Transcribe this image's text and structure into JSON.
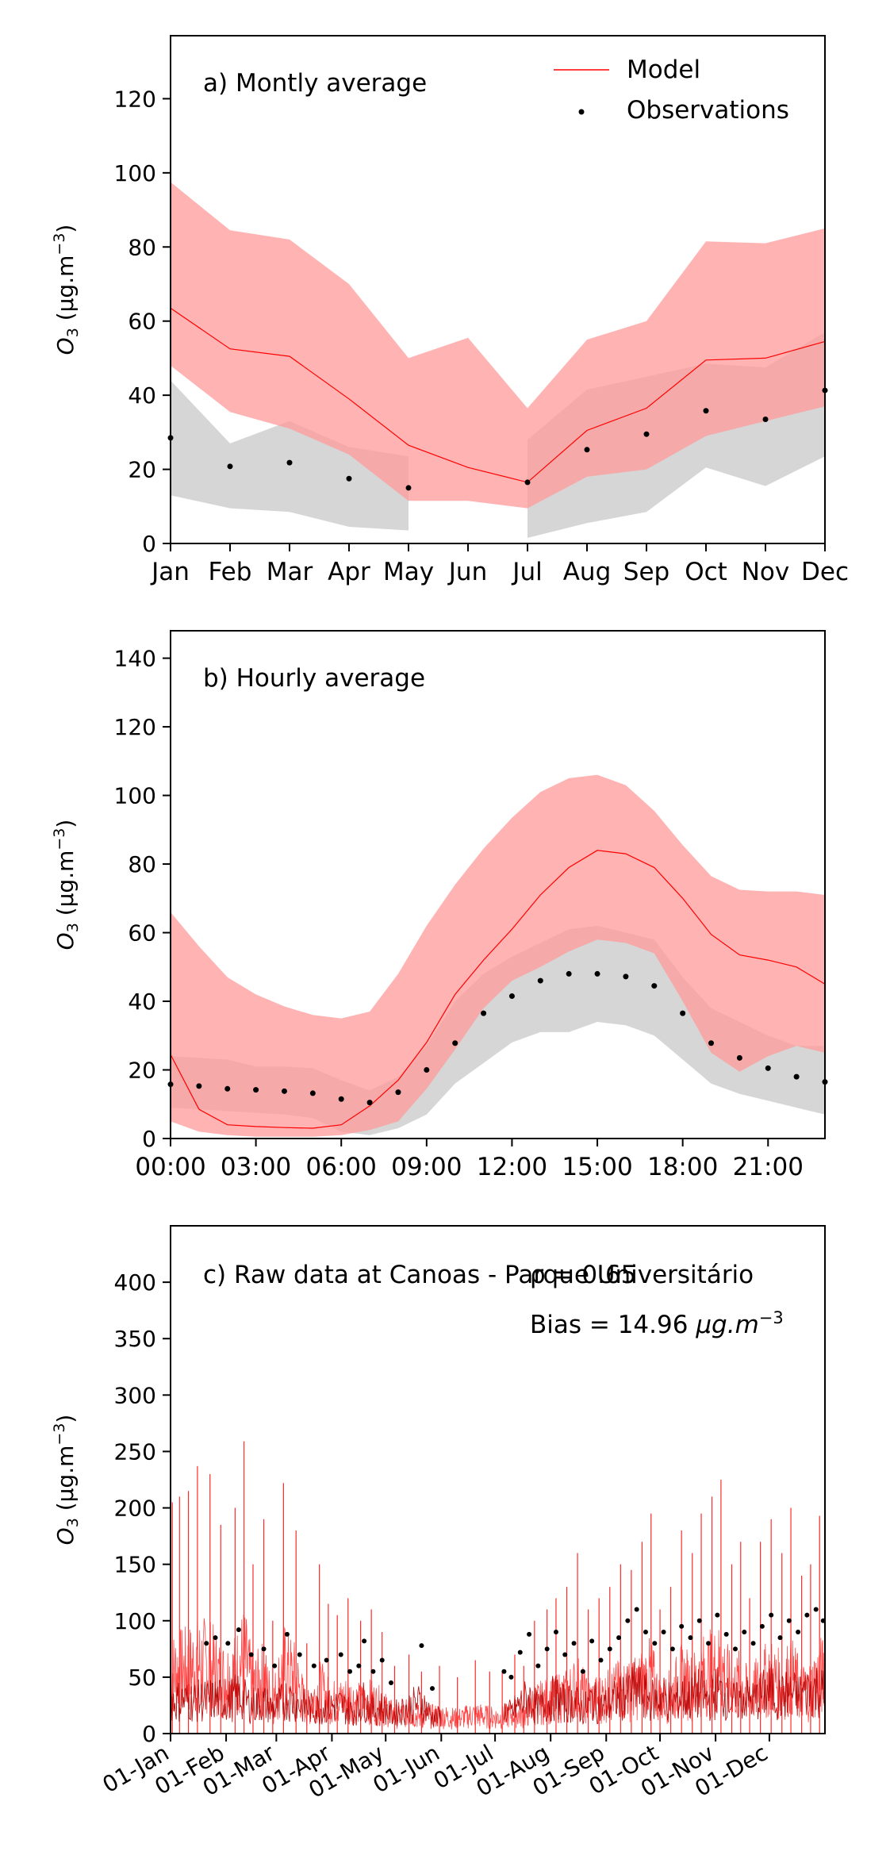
{
  "chart_data": [
    {
      "type": "line",
      "panel_label": "a) Montly average",
      "ylabel_main": "O",
      "ylabel_sub": "3",
      "ylabel_unit": " (μg.m",
      "ylabel_exp": "−3",
      "ylabel_close": ")",
      "x": [
        0,
        1,
        2,
        3,
        4,
        5,
        6,
        7,
        8,
        9,
        10,
        11
      ],
      "categories": [
        "Jan",
        "Feb",
        "Mar",
        "Apr",
        "May",
        "Jun",
        "Jul",
        "Aug",
        "Sep",
        "Oct",
        "Nov",
        "Dec"
      ],
      "xlim": [
        0,
        11
      ],
      "ylim": [
        0,
        137
      ],
      "yticks": [
        0,
        20,
        40,
        60,
        80,
        100,
        120
      ],
      "legend": {
        "placement": "top-right",
        "model": "Model",
        "observations": "Observations"
      },
      "model": {
        "x": [
          0,
          1,
          2,
          3,
          4,
          5,
          6,
          7,
          8,
          9,
          10,
          11
        ],
        "values": [
          63.5,
          52.5,
          50.5,
          39,
          26.5,
          20.5,
          16.5,
          30.5,
          36.5,
          49.5,
          50,
          54.5
        ],
        "upper": [
          97.5,
          84.5,
          82,
          70,
          50,
          55.5,
          36.5,
          55,
          60,
          81.5,
          81,
          85
        ],
        "lower": [
          48,
          35.5,
          31,
          24,
          11.5,
          11.5,
          9.5,
          18,
          20,
          29,
          33,
          37
        ]
      },
      "obs": {
        "x": [
          0,
          1,
          2,
          3,
          4,
          6,
          7,
          8,
          9,
          10,
          11
        ],
        "values": [
          28.5,
          20.8,
          21.8,
          17.5,
          15.0,
          16.5,
          25.3,
          29.5,
          35.8,
          33.5,
          41.3
        ]
      },
      "obs_band": [
        {
          "x": [
            0,
            1,
            2,
            3,
            4
          ],
          "upper": [
            44,
            27,
            33,
            26,
            23.5
          ],
          "lower": [
            13,
            9.5,
            8.5,
            4.5,
            3.5
          ]
        },
        {
          "x": [
            6,
            7,
            8,
            9,
            10,
            11
          ],
          "upper": [
            28,
            41.5,
            45,
            48.5,
            47.5,
            57
          ],
          "lower": [
            1.5,
            5.5,
            8.5,
            20.5,
            15.5,
            23.5
          ]
        }
      ]
    },
    {
      "type": "line",
      "panel_label": "b) Hourly average",
      "ylabel_main": "O",
      "ylabel_sub": "3",
      "ylabel_unit": " (μg.m",
      "ylabel_exp": "−3",
      "ylabel_close": ")",
      "xlim": [
        0,
        23
      ],
      "ylim": [
        0,
        148
      ],
      "yticks": [
        0,
        20,
        40,
        60,
        80,
        100,
        120,
        140
      ],
      "xtick_values": [
        0,
        3,
        6,
        9,
        12,
        15,
        18,
        21
      ],
      "xtick_labels": [
        "00:00",
        "03:00",
        "06:00",
        "09:00",
        "12:00",
        "15:00",
        "18:00",
        "21:00"
      ],
      "model": {
        "x": [
          0,
          1,
          2,
          3,
          4,
          5,
          6,
          7,
          8,
          9,
          10,
          11,
          12,
          13,
          14,
          15,
          16,
          17,
          18,
          19,
          20,
          21,
          22,
          23
        ],
        "values": [
          24.5,
          8.5,
          4,
          3.5,
          3.2,
          3,
          4,
          9.5,
          17,
          28,
          42,
          52,
          61,
          71,
          79,
          84,
          83,
          79,
          70,
          59.5,
          53.5,
          52,
          50,
          45
        ],
        "upper": [
          66,
          56,
          47,
          42,
          38.5,
          36,
          35,
          37,
          48,
          62,
          74,
          84.5,
          93.5,
          101,
          105,
          106,
          103,
          95.5,
          85.5,
          76.5,
          72.5,
          72,
          72,
          71
        ],
        "lower": [
          5,
          2,
          1,
          0.5,
          0.5,
          0.5,
          1,
          2.5,
          5,
          14.5,
          26,
          38,
          46,
          50,
          54.5,
          58,
          57,
          54,
          40,
          25,
          19.5,
          24,
          27,
          25
        ]
      },
      "obs": {
        "x": [
          0,
          1,
          2,
          3,
          4,
          5,
          6,
          7,
          8,
          9,
          10,
          11,
          12,
          13,
          14,
          15,
          16,
          17,
          18,
          19,
          20,
          21,
          22,
          23
        ],
        "values": [
          15.8,
          15.3,
          14.5,
          14.2,
          13.8,
          13.2,
          11.5,
          10.5,
          13.5,
          20.0,
          27.8,
          36.5,
          41.5,
          46.0,
          48.0,
          48.0,
          47.2,
          44.5,
          36.5,
          27.8,
          23.5,
          20.5,
          18.0,
          16.5
        ]
      },
      "obs_band": [
        {
          "x": [
            0,
            1,
            2,
            3,
            4,
            5,
            6,
            7,
            8,
            9,
            10,
            11,
            12,
            13,
            14,
            15,
            16,
            17,
            18,
            19,
            20,
            21,
            22,
            23
          ],
          "upper": [
            24,
            23.5,
            23,
            21,
            21,
            20.5,
            17,
            14,
            18,
            27,
            40,
            48,
            53,
            57,
            61,
            62,
            60,
            58,
            47,
            38,
            34,
            30,
            27,
            27
          ],
          "lower": [
            9,
            8.5,
            8,
            7.5,
            7,
            6,
            2,
            1,
            3,
            7,
            16,
            22,
            28,
            31,
            31,
            34,
            33,
            30,
            23,
            16,
            13,
            11,
            9,
            7
          ]
        }
      ]
    },
    {
      "type": "line",
      "panel_label": "c) Raw data at Canoas - Parque Universitário",
      "stat_r": "ρ = 0.65",
      "stat_bias_text": "Bias = 14.96 ",
      "stat_bias_unit": "μg.m",
      "stat_bias_exp": "−3",
      "ylabel_main": "O",
      "ylabel_sub": "3",
      "ylabel_unit": " (μg.m",
      "ylabel_exp": "−3",
      "ylabel_close": ")",
      "xlim": [
        0,
        365
      ],
      "ylim": [
        0,
        450
      ],
      "yticks": [
        0,
        50,
        100,
        150,
        200,
        250,
        300,
        350,
        400
      ],
      "xtick_values": [
        0,
        31,
        59,
        90,
        120,
        151,
        181,
        212,
        243,
        273,
        304,
        334
      ],
      "xtick_labels": [
        "01-Jan",
        "01-Feb",
        "01-Mar",
        "01-Apr",
        "01-May",
        "01-Jun",
        "01-Jul",
        "01-Aug",
        "01-Sep",
        "01-Oct",
        "01-Nov",
        "01-Dec"
      ],
      "model_spikes": [
        {
          "x": 1,
          "y": 205
        },
        {
          "x": 5,
          "y": 210
        },
        {
          "x": 10,
          "y": 215
        },
        {
          "x": 15,
          "y": 237
        },
        {
          "x": 22,
          "y": 230
        },
        {
          "x": 28,
          "y": 185
        },
        {
          "x": 36,
          "y": 200
        },
        {
          "x": 41,
          "y": 259
        },
        {
          "x": 46,
          "y": 150
        },
        {
          "x": 52,
          "y": 190
        },
        {
          "x": 57,
          "y": 100
        },
        {
          "x": 63,
          "y": 222
        },
        {
          "x": 70,
          "y": 180
        },
        {
          "x": 76,
          "y": 80
        },
        {
          "x": 83,
          "y": 150
        },
        {
          "x": 88,
          "y": 115
        },
        {
          "x": 93,
          "y": 105
        },
        {
          "x": 99,
          "y": 120
        },
        {
          "x": 106,
          "y": 100
        },
        {
          "x": 112,
          "y": 110
        },
        {
          "x": 118,
          "y": 90
        },
        {
          "x": 125,
          "y": 60
        },
        {
          "x": 133,
          "y": 70
        },
        {
          "x": 140,
          "y": 55
        },
        {
          "x": 150,
          "y": 60
        },
        {
          "x": 160,
          "y": 50
        },
        {
          "x": 170,
          "y": 65
        },
        {
          "x": 178,
          "y": 55
        },
        {
          "x": 185,
          "y": 55
        },
        {
          "x": 192,
          "y": 70
        },
        {
          "x": 197,
          "y": 60
        },
        {
          "x": 203,
          "y": 100
        },
        {
          "x": 210,
          "y": 110
        },
        {
          "x": 215,
          "y": 120
        },
        {
          "x": 221,
          "y": 130
        },
        {
          "x": 227,
          "y": 160
        },
        {
          "x": 233,
          "y": 110
        },
        {
          "x": 239,
          "y": 120
        },
        {
          "x": 245,
          "y": 130
        },
        {
          "x": 251,
          "y": 150
        },
        {
          "x": 257,
          "y": 145
        },
        {
          "x": 263,
          "y": 170
        },
        {
          "x": 268,
          "y": 195
        },
        {
          "x": 273,
          "y": 110
        },
        {
          "x": 279,
          "y": 130
        },
        {
          "x": 285,
          "y": 180
        },
        {
          "x": 291,
          "y": 160
        },
        {
          "x": 296,
          "y": 195
        },
        {
          "x": 302,
          "y": 210
        },
        {
          "x": 307,
          "y": 225
        },
        {
          "x": 313,
          "y": 150
        },
        {
          "x": 318,
          "y": 170
        },
        {
          "x": 323,
          "y": 120
        },
        {
          "x": 329,
          "y": 170
        },
        {
          "x": 335,
          "y": 190
        },
        {
          "x": 341,
          "y": 160
        },
        {
          "x": 346,
          "y": 200
        },
        {
          "x": 352,
          "y": 140
        },
        {
          "x": 357,
          "y": 150
        },
        {
          "x": 362,
          "y": 193
        }
      ],
      "obs_peaks": [
        {
          "x": 20,
          "y": 80
        },
        {
          "x": 25,
          "y": 85
        },
        {
          "x": 32,
          "y": 80
        },
        {
          "x": 38,
          "y": 92
        },
        {
          "x": 45,
          "y": 70
        },
        {
          "x": 52,
          "y": 75
        },
        {
          "x": 58,
          "y": 60
        },
        {
          "x": 65,
          "y": 88
        },
        {
          "x": 72,
          "y": 70
        },
        {
          "x": 80,
          "y": 60
        },
        {
          "x": 87,
          "y": 65
        },
        {
          "x": 95,
          "y": 70
        },
        {
          "x": 100,
          "y": 55
        },
        {
          "x": 105,
          "y": 60
        },
        {
          "x": 108,
          "y": 82
        },
        {
          "x": 113,
          "y": 55
        },
        {
          "x": 118,
          "y": 65
        },
        {
          "x": 123,
          "y": 45
        },
        {
          "x": 140,
          "y": 78
        },
        {
          "x": 146,
          "y": 40
        },
        {
          "x": 186,
          "y": 55
        },
        {
          "x": 190,
          "y": 50
        },
        {
          "x": 195,
          "y": 72
        },
        {
          "x": 200,
          "y": 88
        },
        {
          "x": 205,
          "y": 60
        },
        {
          "x": 210,
          "y": 75
        },
        {
          "x": 215,
          "y": 90
        },
        {
          "x": 220,
          "y": 70
        },
        {
          "x": 225,
          "y": 80
        },
        {
          "x": 230,
          "y": 55
        },
        {
          "x": 235,
          "y": 82
        },
        {
          "x": 240,
          "y": 65
        },
        {
          "x": 245,
          "y": 75
        },
        {
          "x": 250,
          "y": 85
        },
        {
          "x": 255,
          "y": 100
        },
        {
          "x": 260,
          "y": 110
        },
        {
          "x": 265,
          "y": 90
        },
        {
          "x": 270,
          "y": 80
        },
        {
          "x": 275,
          "y": 90
        },
        {
          "x": 280,
          "y": 75
        },
        {
          "x": 285,
          "y": 95
        },
        {
          "x": 290,
          "y": 85
        },
        {
          "x": 295,
          "y": 100
        },
        {
          "x": 300,
          "y": 80
        },
        {
          "x": 305,
          "y": 105
        },
        {
          "x": 310,
          "y": 88
        },
        {
          "x": 315,
          "y": 75
        },
        {
          "x": 320,
          "y": 90
        },
        {
          "x": 325,
          "y": 80
        },
        {
          "x": 330,
          "y": 95
        },
        {
          "x": 335,
          "y": 105
        },
        {
          "x": 340,
          "y": 85
        },
        {
          "x": 345,
          "y": 100
        },
        {
          "x": 350,
          "y": 90
        },
        {
          "x": 355,
          "y": 105
        },
        {
          "x": 360,
          "y": 110
        },
        {
          "x": 364,
          "y": 100
        }
      ],
      "obs_gap": [
        151,
        186
      ]
    }
  ],
  "colors": {
    "model_line": "#ff0000",
    "model_band": "#ff9999",
    "obs_band": "#bbbbbb",
    "obs_point": "#000000",
    "raw_model": "#ff2a2a",
    "raw_obs": "#b00000"
  }
}
